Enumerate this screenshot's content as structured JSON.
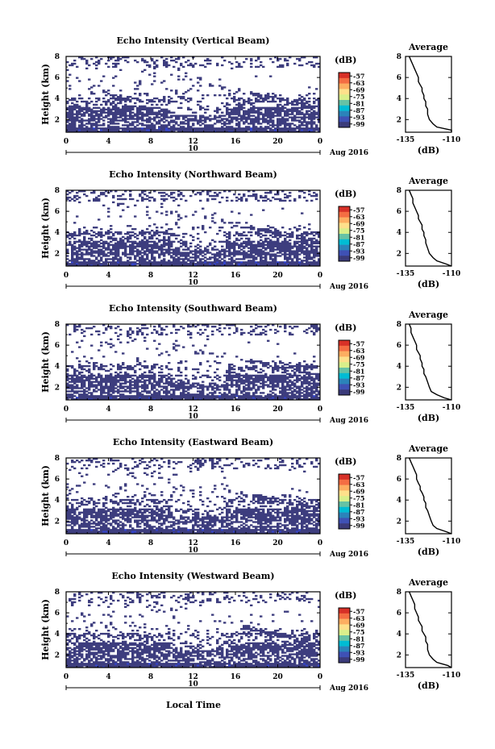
{
  "figure": {
    "xlabel": "Local Time",
    "date_label": "10",
    "month_label": "Aug 2016",
    "colorbar_unit": "(dB)",
    "colorbar_ticks": [
      "-57",
      "-63",
      "-69",
      "-75",
      "-81",
      "-87",
      "-93",
      "-99"
    ],
    "colorbar_colors": [
      "#d73027",
      "#f46d43",
      "#fdae61",
      "#fee08b",
      "#d9ef8b",
      "#66c2a5",
      "#00bcd4",
      "#2b83ba",
      "#3f51b5",
      "#3b3b7a"
    ],
    "echo_color": "#3d3d7e",
    "echo_color_strong": "#3344cc"
  },
  "chart_data": [
    {
      "type": "heatmap",
      "title": "Echo Intensity (Vertical Beam)",
      "ylabel": "Height (km)",
      "xticks": [
        "0",
        "4",
        "8",
        "12",
        "16",
        "20",
        "0"
      ],
      "yticks": [
        "2",
        "4",
        "6",
        "8"
      ],
      "xlim": [
        0,
        24
      ],
      "ylim": [
        0.8,
        8
      ],
      "profile": {
        "title": "Average",
        "xlabel": "(dB)",
        "xticks": [
          "-135",
          "-110"
        ],
        "yticks": [
          "2",
          "4",
          "6",
          "8"
        ],
        "xlim": [
          -135,
          -110
        ],
        "ylim": [
          0.8,
          8
        ],
        "x": [
          -108,
          -110,
          -118,
          -120,
          -122,
          -123,
          -123,
          -124,
          -124,
          -125,
          -125,
          -126,
          -126,
          -127,
          -128,
          -128,
          -129,
          -130,
          -131,
          -132,
          -133
        ],
        "y": [
          0.8,
          1.0,
          1.3,
          1.6,
          2.0,
          2.5,
          3.0,
          3.3,
          3.7,
          4.0,
          4.3,
          4.7,
          5.0,
          5.3,
          5.6,
          6.0,
          6.4,
          6.8,
          7.2,
          7.6,
          8.0
        ]
      }
    },
    {
      "type": "heatmap",
      "title": "Echo Intensity (Northward Beam)",
      "ylabel": "Height (km)",
      "xticks": [
        "0",
        "4",
        "8",
        "12",
        "16",
        "20",
        "0"
      ],
      "yticks": [
        "2",
        "4",
        "6",
        "8"
      ],
      "xlim": [
        0,
        24
      ],
      "ylim": [
        0.8,
        8
      ],
      "profile": {
        "title": "Average",
        "xlabel": "(dB)",
        "xticks": [
          "-135",
          "-110"
        ],
        "yticks": [
          "2",
          "4",
          "6",
          "8"
        ],
        "xlim": [
          -135,
          -110
        ],
        "ylim": [
          0.8,
          8
        ],
        "x": [
          -110,
          -113,
          -118,
          -120,
          -122,
          -123,
          -124,
          -124,
          -125,
          -125,
          -126,
          -126,
          -127,
          -128,
          -128,
          -129,
          -130,
          -131,
          -131,
          -132,
          -133
        ],
        "y": [
          0.8,
          1.0,
          1.3,
          1.6,
          2.0,
          2.5,
          3.0,
          3.3,
          3.7,
          4.0,
          4.3,
          4.7,
          5.0,
          5.3,
          5.6,
          6.0,
          6.4,
          6.8,
          7.2,
          7.6,
          8.0
        ]
      }
    },
    {
      "type": "heatmap",
      "title": "Echo Intensity (Southward Beam)",
      "ylabel": "Height (km)",
      "xticks": [
        "0",
        "4",
        "8",
        "12",
        "16",
        "20",
        "0"
      ],
      "yticks": [
        "2",
        "4",
        "6",
        "8"
      ],
      "xlim": [
        0,
        24
      ],
      "ylim": [
        0.8,
        8
      ],
      "profile": {
        "title": "Average",
        "xlabel": "(dB)",
        "xticks": [
          "-135",
          "-110"
        ],
        "yticks": [
          "2",
          "4",
          "6",
          "8"
        ],
        "xlim": [
          -135,
          -110
        ],
        "ylim": [
          0.8,
          8
        ],
        "x": [
          -110,
          -114,
          -118,
          -121,
          -122,
          -123,
          -124,
          -125,
          -125,
          -126,
          -126,
          -127,
          -127,
          -128,
          -129,
          -129,
          -130,
          -131,
          -132,
          -132,
          -133
        ],
        "y": [
          0.8,
          1.0,
          1.3,
          1.6,
          2.0,
          2.5,
          3.0,
          3.3,
          3.7,
          4.0,
          4.3,
          4.7,
          5.0,
          5.3,
          5.6,
          6.0,
          6.4,
          6.8,
          7.2,
          7.6,
          8.0
        ]
      }
    },
    {
      "type": "heatmap",
      "title": "Echo Intensity (Eastward Beam)",
      "ylabel": "Height (km)",
      "xticks": [
        "0",
        "4",
        "8",
        "12",
        "16",
        "20",
        "0"
      ],
      "yticks": [
        "2",
        "4",
        "6",
        "8"
      ],
      "xlim": [
        0,
        24
      ],
      "ylim": [
        0.8,
        8
      ],
      "profile": {
        "title": "Average",
        "xlabel": "(dB)",
        "xticks": [
          "-135",
          "-110"
        ],
        "yticks": [
          "2",
          "4",
          "6",
          "8"
        ],
        "xlim": [
          -135,
          -110
        ],
        "ylim": [
          0.8,
          8
        ],
        "x": [
          -110,
          -113,
          -118,
          -120,
          -121,
          -122,
          -123,
          -124,
          -124,
          -125,
          -125,
          -126,
          -127,
          -127,
          -128,
          -129,
          -129,
          -130,
          -131,
          -132,
          -133
        ],
        "y": [
          0.8,
          1.0,
          1.3,
          1.6,
          2.0,
          2.5,
          3.0,
          3.3,
          3.7,
          4.0,
          4.3,
          4.7,
          5.0,
          5.3,
          5.6,
          6.0,
          6.4,
          6.8,
          7.2,
          7.6,
          8.0
        ]
      }
    },
    {
      "type": "heatmap",
      "title": "Echo Intensity (Westward Beam)",
      "ylabel": "Height (km)",
      "xticks": [
        "0",
        "4",
        "8",
        "12",
        "16",
        "20",
        "0"
      ],
      "yticks": [
        "2",
        "4",
        "6",
        "8"
      ],
      "xlim": [
        0,
        24
      ],
      "ylim": [
        0.8,
        8
      ],
      "profile": {
        "title": "Average",
        "xlabel": "(dB)",
        "xticks": [
          "-135",
          "-110"
        ],
        "yticks": [
          "2",
          "4",
          "6",
          "8"
        ],
        "xlim": [
          -135,
          -110
        ],
        "ylim": [
          0.8,
          8
        ],
        "x": [
          -110,
          -112,
          -118,
          -120,
          -122,
          -123,
          -123,
          -124,
          -124,
          -125,
          -126,
          -126,
          -127,
          -128,
          -128,
          -129,
          -130,
          -130,
          -131,
          -132,
          -133
        ],
        "y": [
          0.8,
          1.0,
          1.3,
          1.6,
          2.0,
          2.5,
          3.0,
          3.3,
          3.7,
          4.0,
          4.3,
          4.7,
          5.0,
          5.3,
          5.6,
          6.0,
          6.4,
          6.8,
          7.2,
          7.6,
          8.0
        ]
      }
    }
  ]
}
